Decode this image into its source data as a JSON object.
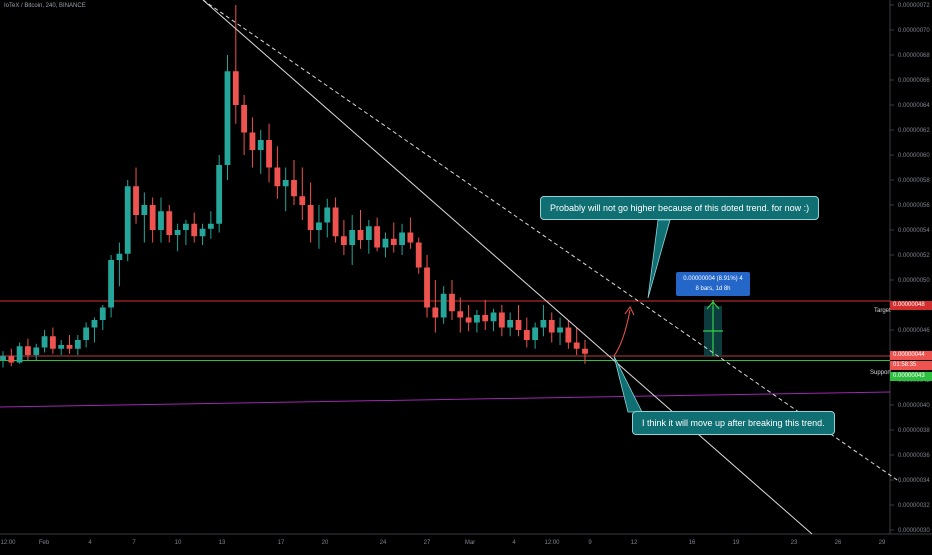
{
  "header": {
    "title": "IoTeX / Bitcoin, 240, BINANCE"
  },
  "colors": {
    "background": "#000000",
    "up_candle": "#26a69a",
    "down_candle": "#ef5350",
    "target_line": "#d32f2f",
    "support_line": "#2fbf40",
    "price_line": "#ef5350",
    "purple_line": "#9c27b0",
    "trend_line": "#d9d9d9",
    "callout_bg": "#0f6f73",
    "measure_bg": "#2467c9"
  },
  "annotations": {
    "callout_top": "Probably will not go higher because of this doted trend. for now :)",
    "callout_bottom": "I think it will move up after breaking this trend.",
    "measure_line1": "0.00000004 (8.91%) 4",
    "measure_line2": "8 bars, 1d 8h",
    "target_label": "Target",
    "support_label": "Support",
    "target_price": "0.00000048",
    "current_price": "0.00000044",
    "countdown": "01:58:35",
    "support_price": "0.00000043"
  },
  "chart_data": {
    "type": "candlestick",
    "title": "IoTeX / Bitcoin, 240, BINANCE",
    "y_axis": {
      "ticks": [
        "0.00000072",
        "0.00000070",
        "0.00000068",
        "0.00000066",
        "0.00000064",
        "0.00000062",
        "0.00000060",
        "0.00000058",
        "0.00000056",
        "0.00000054",
        "0.00000052",
        "0.00000050",
        "0.00000048",
        "0.00000046",
        "0.00000044",
        "0.00000042",
        "0.00000040",
        "0.00000038",
        "0.00000036",
        "0.00000034",
        "0.00000032",
        "0.00000030"
      ],
      "ylim": [
        3e-07,
        7.2e-07
      ]
    },
    "x_axis": {
      "ticks": [
        "12:00",
        "Feb",
        "4",
        "7",
        "10",
        "13",
        "17",
        "20",
        "24",
        "27",
        "Mar",
        "4",
        "12:00",
        "9",
        "12",
        "16",
        "19",
        "23",
        "26",
        "29"
      ]
    },
    "series": [
      {
        "points": [
          [
            4.36e-07,
            4.43e-07,
            4.3e-07,
            4.39e-07
          ],
          [
            4.39e-07,
            4.45e-07,
            4.31e-07,
            4.34e-07
          ],
          [
            4.34e-07,
            4.5e-07,
            4.33e-07,
            4.47e-07
          ],
          [
            4.47e-07,
            4.53e-07,
            4.36e-07,
            4.4e-07
          ],
          [
            4.4e-07,
            4.49e-07,
            4.36e-07,
            4.46e-07
          ],
          [
            4.46e-07,
            4.6e-07,
            4.42e-07,
            4.55e-07
          ],
          [
            4.55e-07,
            4.62e-07,
            4.41e-07,
            4.45e-07
          ],
          [
            4.45e-07,
            4.52e-07,
            4.4e-07,
            4.48e-07
          ],
          [
            4.48e-07,
            4.56e-07,
            4.41e-07,
            4.45e-07
          ],
          [
            4.45e-07,
            4.56e-07,
            4.4e-07,
            4.52e-07
          ],
          [
            4.52e-07,
            4.66e-07,
            4.46e-07,
            4.62e-07
          ],
          [
            4.62e-07,
            4.7e-07,
            4.5e-07,
            4.68e-07
          ],
          [
            4.68e-07,
            4.8e-07,
            4.6e-07,
            4.78e-07
          ],
          [
            4.78e-07,
            5.2e-07,
            4.7e-07,
            5.16e-07
          ],
          [
            5.16e-07,
            5.3e-07,
            4.95e-07,
            5.21e-07
          ],
          [
            5.21e-07,
            5.8e-07,
            5.15e-07,
            5.75e-07
          ],
          [
            5.75e-07,
            5.9e-07,
            5.45e-07,
            5.52e-07
          ],
          [
            5.52e-07,
            5.7e-07,
            5.3e-07,
            5.6e-07
          ],
          [
            5.6e-07,
            5.66e-07,
            5.3e-07,
            5.4e-07
          ],
          [
            5.4e-07,
            5.66e-07,
            5.3e-07,
            5.55e-07
          ],
          [
            5.55e-07,
            5.6e-07,
            5.3e-07,
            5.36e-07
          ],
          [
            5.36e-07,
            5.45e-07,
            5.23e-07,
            5.4e-07
          ],
          [
            5.4e-07,
            5.48e-07,
            5.28e-07,
            5.45e-07
          ],
          [
            5.45e-07,
            5.54e-07,
            5.3e-07,
            5.35e-07
          ],
          [
            5.35e-07,
            5.45e-07,
            5.28e-07,
            5.41e-07
          ],
          [
            5.41e-07,
            5.55e-07,
            5.33e-07,
            5.45e-07
          ],
          [
            5.45e-07,
            6e-07,
            5.38e-07,
            5.92e-07
          ],
          [
            5.92e-07,
            6.8e-07,
            5.8e-07,
            6.67e-07
          ],
          [
            6.67e-07,
            7.2e-07,
            6.25e-07,
            6.4e-07
          ],
          [
            6.4e-07,
            6.48e-07,
            6e-07,
            6.18e-07
          ],
          [
            6.18e-07,
            6.3e-07,
            5.9e-07,
            6.04e-07
          ],
          [
            6.04e-07,
            6.2e-07,
            5.85e-07,
            6.12e-07
          ],
          [
            6.12e-07,
            6.25e-07,
            5.78e-07,
            5.9e-07
          ],
          [
            5.9e-07,
            6.07e-07,
            5.65e-07,
            5.75e-07
          ],
          [
            5.75e-07,
            5.9e-07,
            5.55e-07,
            5.8e-07
          ],
          [
            5.8e-07,
            5.96e-07,
            5.6e-07,
            5.67e-07
          ],
          [
            5.67e-07,
            5.9e-07,
            5.48e-07,
            5.6e-07
          ],
          [
            5.6e-07,
            5.78e-07,
            5.3e-07,
            5.4e-07
          ],
          [
            5.4e-07,
            5.6e-07,
            5.25e-07,
            5.46e-07
          ],
          [
            5.46e-07,
            5.65e-07,
            5.34e-07,
            5.58e-07
          ],
          [
            5.58e-07,
            5.66e-07,
            5.3e-07,
            5.35e-07
          ],
          [
            5.35e-07,
            5.48e-07,
            5.2e-07,
            5.28e-07
          ],
          [
            5.28e-07,
            5.52e-07,
            5.12e-07,
            5.4e-07
          ],
          [
            5.4e-07,
            5.56e-07,
            5.25e-07,
            5.32e-07
          ],
          [
            5.32e-07,
            5.48e-07,
            5.21e-07,
            5.43e-07
          ],
          [
            5.43e-07,
            5.5e-07,
            5.23e-07,
            5.26e-07
          ],
          [
            5.26e-07,
            5.38e-07,
            5.18e-07,
            5.33e-07
          ],
          [
            5.33e-07,
            5.46e-07,
            5.22e-07,
            5.28e-07
          ],
          [
            5.28e-07,
            5.45e-07,
            5.2e-07,
            5.38e-07
          ],
          [
            5.38e-07,
            5.5e-07,
            5.25e-07,
            5.3e-07
          ],
          [
            5.3e-07,
            5.34e-07,
            5.05e-07,
            5.1e-07
          ],
          [
            5.1e-07,
            5.2e-07,
            4.7e-07,
            4.78e-07
          ],
          [
            4.78e-07,
            5e-07,
            4.58e-07,
            4.7e-07
          ],
          [
            4.7e-07,
            4.95e-07,
            4.65e-07,
            4.89e-07
          ],
          [
            4.89e-07,
            5e-07,
            4.68e-07,
            4.75e-07
          ],
          [
            4.75e-07,
            4.86e-07,
            4.58e-07,
            4.7e-07
          ],
          [
            4.7e-07,
            4.8e-07,
            4.59e-07,
            4.66e-07
          ],
          [
            4.66e-07,
            4.76e-07,
            4.58e-07,
            4.72e-07
          ],
          [
            4.72e-07,
            4.84e-07,
            4.6e-07,
            4.67e-07
          ],
          [
            4.67e-07,
            4.77e-07,
            4.59e-07,
            4.74e-07
          ],
          [
            4.74e-07,
            4.8e-07,
            4.55e-07,
            4.62e-07
          ],
          [
            4.62e-07,
            4.74e-07,
            4.55e-07,
            4.68e-07
          ],
          [
            4.68e-07,
            4.8e-07,
            4.55e-07,
            4.6e-07
          ],
          [
            4.6e-07,
            4.7e-07,
            4.46e-07,
            4.52e-07
          ],
          [
            4.52e-07,
            4.66e-07,
            4.45e-07,
            4.62e-07
          ],
          [
            4.62e-07,
            4.8e-07,
            4.55e-07,
            4.68e-07
          ],
          [
            4.68e-07,
            4.74e-07,
            4.5e-07,
            4.58e-07
          ],
          [
            4.58e-07,
            4.7e-07,
            4.48e-07,
            4.62e-07
          ],
          [
            4.62e-07,
            4.68e-07,
            4.45e-07,
            4.5e-07
          ],
          [
            4.5e-07,
            4.62e-07,
            4.4e-07,
            4.45e-07
          ],
          [
            4.45e-07,
            4.52e-07,
            4.33e-07,
            4.41e-07
          ]
        ]
      }
    ],
    "horizontal_lines": [
      {
        "name": "Target",
        "value": 4.8e-07
      },
      {
        "name": "Support",
        "value": 4.3e-07
      }
    ],
    "grid": false,
    "legend": "none"
  }
}
